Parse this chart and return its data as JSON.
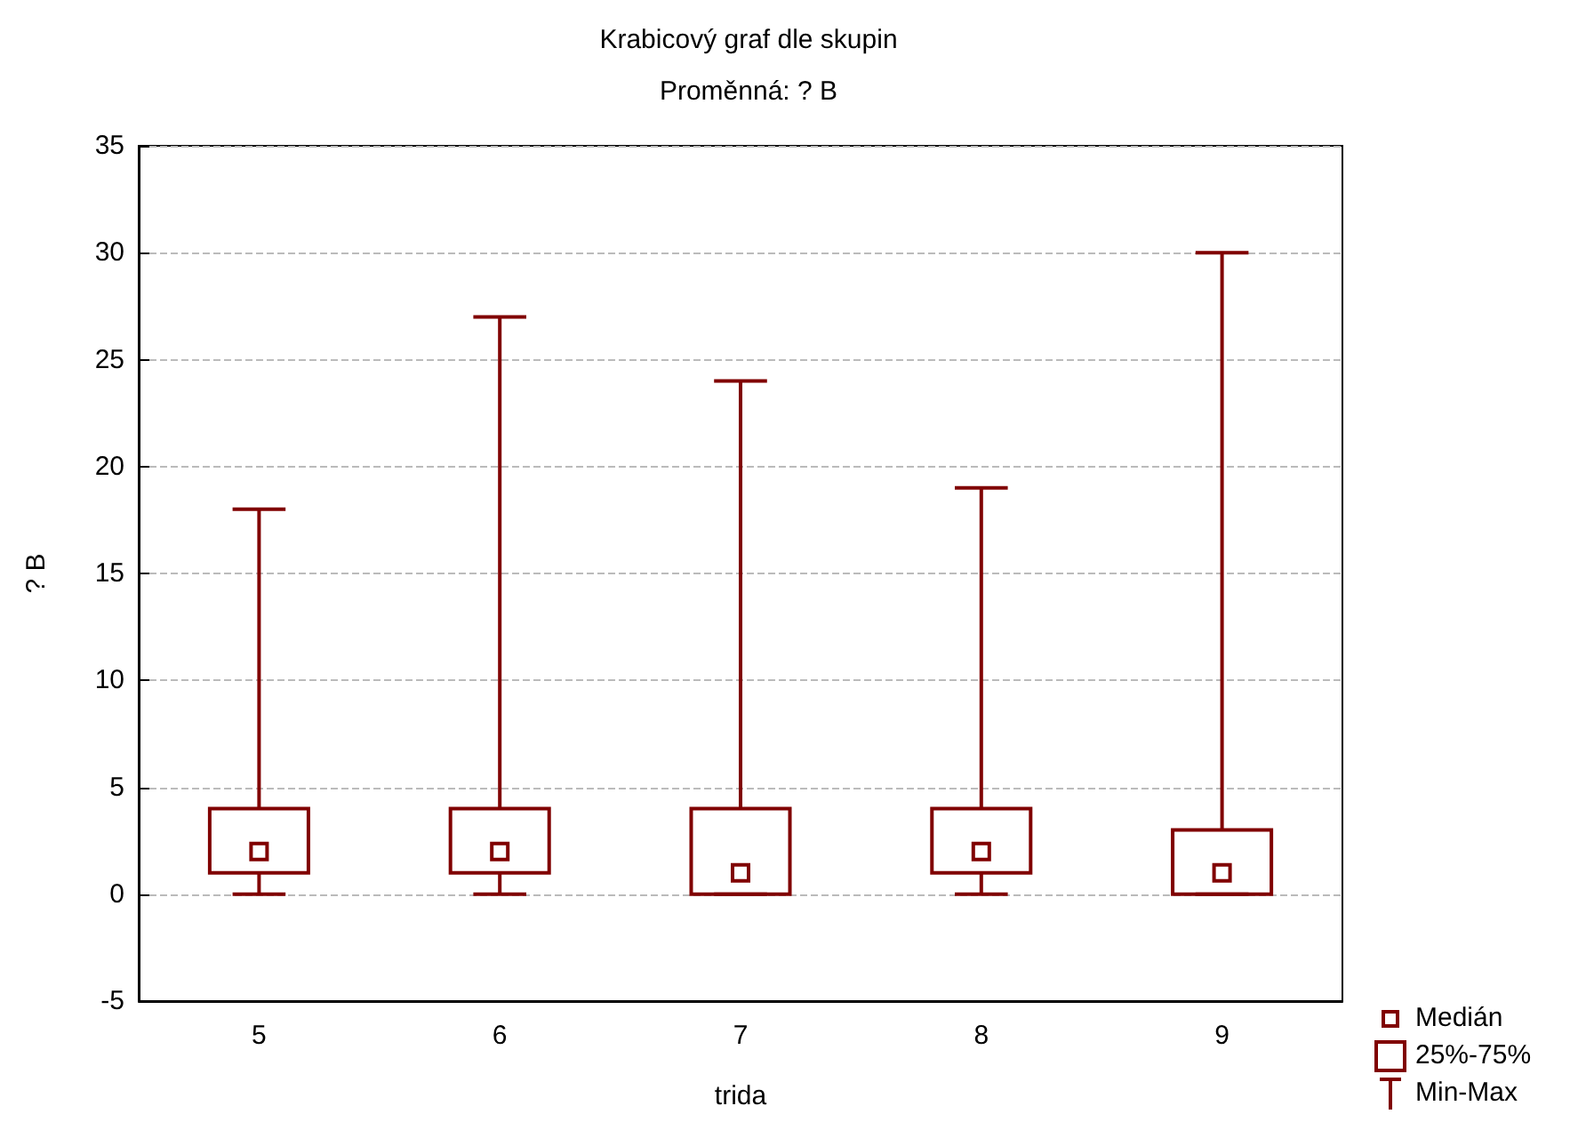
{
  "chart_data": {
    "type": "box",
    "title": "Krabicový graf dle skupin",
    "subtitle": "Proměnná: ? B",
    "xlabel": "trida",
    "ylabel": "? B",
    "categories": [
      "5",
      "6",
      "7",
      "8",
      "9"
    ],
    "series": [
      {
        "color": "#800000",
        "boxes": [
          {
            "low": 0,
            "q1": 1,
            "median": 2,
            "q3": 4,
            "high": 18
          },
          {
            "low": 0,
            "q1": 1,
            "median": 2,
            "q3": 4,
            "high": 27
          },
          {
            "low": 0,
            "q1": 0,
            "median": 1,
            "q3": 4,
            "high": 24
          },
          {
            "low": 0,
            "q1": 1,
            "median": 2,
            "q3": 4,
            "high": 19
          },
          {
            "low": 0,
            "q1": 0,
            "median": 1,
            "q3": 3,
            "high": 30
          }
        ]
      }
    ],
    "ylim": [
      -5,
      35
    ],
    "yticks": [
      -5,
      0,
      5,
      10,
      15,
      20,
      25,
      30,
      35
    ],
    "grid": "y",
    "annotations": [
      "Medián",
      "25%-75%",
      "Min-Max"
    ]
  }
}
